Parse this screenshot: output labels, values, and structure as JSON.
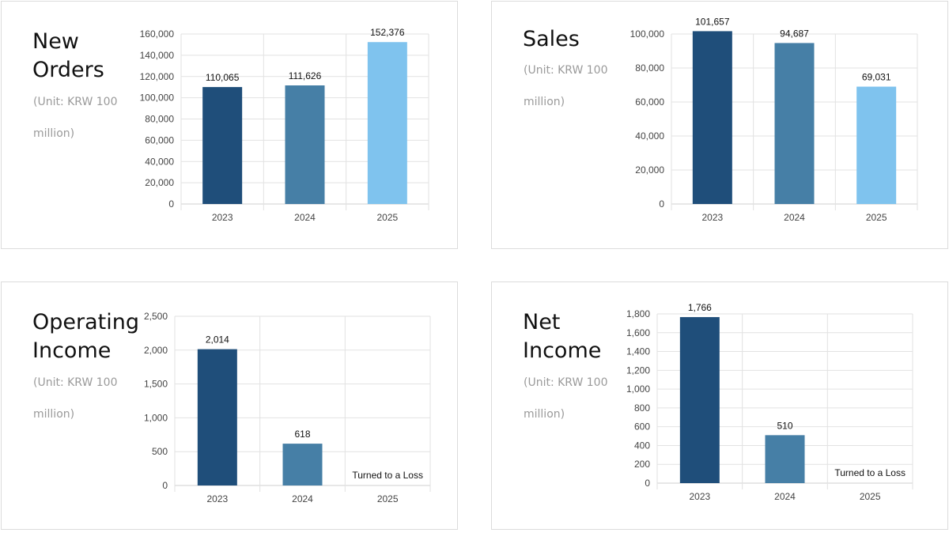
{
  "colors": {
    "year_2023": "#1f4e7a",
    "year_2024": "#467fa6",
    "year_2025": "#7fc3ee",
    "grid": "#e2e2e2",
    "axis_text": "#444444"
  },
  "chart_data": [
    {
      "type": "bar",
      "title": "New Orders",
      "subtitle": "(Unit: KRW 100 million)",
      "categories": [
        "2023",
        "2024",
        "2025"
      ],
      "values": [
        110065,
        111626,
        152376
      ],
      "value_labels": [
        "110,065",
        "111,626",
        "152,376"
      ],
      "ylim": [
        0,
        160000
      ],
      "yticks": [
        0,
        20000,
        40000,
        60000,
        80000,
        100000,
        120000,
        140000,
        160000
      ],
      "ytick_labels": [
        "0",
        "20,000",
        "40,000",
        "60,000",
        "80,000",
        "100,000",
        "120,000",
        "140,000",
        "160,000"
      ],
      "grid": true,
      "legend": "none"
    },
    {
      "type": "bar",
      "title": "Sales",
      "subtitle": "(Unit: KRW 100 million)",
      "categories": [
        "2023",
        "2024",
        "2025"
      ],
      "values": [
        101657,
        94687,
        69031
      ],
      "value_labels": [
        "101,657",
        "94,687",
        "69,031"
      ],
      "ylim": [
        0,
        100000
      ],
      "yticks": [
        0,
        20000,
        40000,
        60000,
        80000,
        100000
      ],
      "ytick_labels": [
        "0",
        "20,000",
        "40,000",
        "60,000",
        "80,000",
        "100,000"
      ],
      "grid": true,
      "legend": "none"
    },
    {
      "type": "bar",
      "title": "Operating Income",
      "subtitle": "(Unit: KRW 100 million)",
      "categories": [
        "2023",
        "2024",
        "2025"
      ],
      "values": [
        2014,
        618,
        null
      ],
      "value_labels": [
        "2,014",
        "618",
        "Turned to a Loss"
      ],
      "ylim": [
        0,
        2500
      ],
      "yticks": [
        0,
        500,
        1000,
        1500,
        2000,
        2500
      ],
      "ytick_labels": [
        "0",
        "500",
        "1,000",
        "1,500",
        "2,000",
        "2,500"
      ],
      "grid": true,
      "legend": "none"
    },
    {
      "type": "bar",
      "title": "Net Income",
      "subtitle": "(Unit: KRW 100 million)",
      "categories": [
        "2023",
        "2024",
        "2025"
      ],
      "values": [
        1766,
        510,
        null
      ],
      "value_labels": [
        "1,766",
        "510",
        "Turned to a Loss"
      ],
      "ylim": [
        0,
        1800
      ],
      "yticks": [
        0,
        200,
        400,
        600,
        800,
        1000,
        1200,
        1400,
        1600,
        1800
      ],
      "ytick_labels": [
        "0",
        "200",
        "400",
        "600",
        "800",
        "1,000",
        "1,200",
        "1,400",
        "1,600",
        "1,800"
      ],
      "grid": true,
      "legend": "none"
    }
  ]
}
